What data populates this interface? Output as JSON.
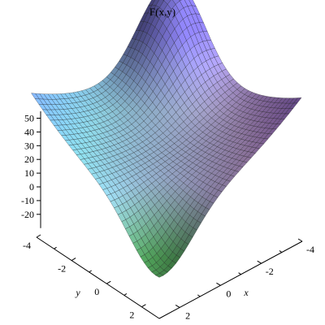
{
  "chart_data": {
    "type": "surface3d",
    "title": "F(x,y)",
    "xlabel": "x",
    "ylabel": "y",
    "zlabel": "",
    "xlim": [
      -4,
      3
    ],
    "ylim": [
      -4,
      3
    ],
    "zlim": [
      -30,
      55
    ],
    "x_ticks": [
      "-4",
      "-2",
      "0",
      "2"
    ],
    "y_ticks": [
      "-4",
      "-2",
      "0",
      "2"
    ],
    "z_ticks": [
      "50",
      "40",
      "30",
      "20",
      "10",
      "0",
      "-10",
      "-20"
    ],
    "surface_description": "saddle-shaped surface with grid mesh; high peak at far corner, low trough at near corner",
    "colors": {
      "high": "#6a5acd",
      "mid_left": "#c080c0",
      "mid_right": "#70d8d8",
      "low": "#3a8a3a"
    }
  }
}
